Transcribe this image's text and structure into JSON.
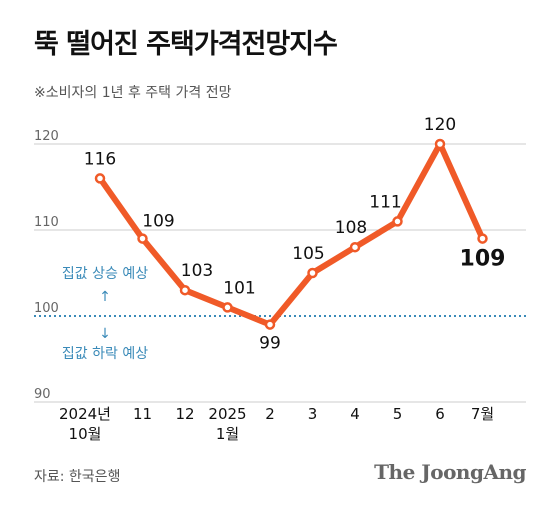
{
  "title": "뚝 떨어진 주택가격전망지수",
  "subtitle": "※소비자의 1년 후 주택 가격 전망",
  "source": "자료: 한국은행",
  "brand": "The JoongAng",
  "colors": {
    "line": "#f05a28",
    "baseline": "#3a8ab8",
    "grid": "#cccccc"
  },
  "chart_data": {
    "type": "line",
    "title": "뚝 떨어진 주택가격전망지수",
    "subtitle": "※소비자의 1년 후 주택 가격 전망",
    "categories": [
      [
        "2024년 10월"
      ],
      [
        "11"
      ],
      [
        "12"
      ],
      [
        "2025",
        "1월"
      ],
      [
        "2"
      ],
      [
        "3"
      ],
      [
        "4"
      ],
      [
        "5"
      ],
      [
        "6"
      ],
      [
        "7월"
      ]
    ],
    "category_lines": [
      [
        "2024년",
        "10월"
      ],
      [
        "11"
      ],
      [
        "12"
      ],
      [
        "2025",
        "1월"
      ],
      [
        "2"
      ],
      [
        "3"
      ],
      [
        "4"
      ],
      [
        "5"
      ],
      [
        "6"
      ],
      [
        "7월"
      ]
    ],
    "values": [
      116,
      109,
      103,
      101,
      99,
      105,
      108,
      111,
      120,
      109
    ],
    "ylim": [
      90,
      120
    ],
    "yticks": [
      90,
      100,
      110,
      120
    ],
    "grid": true,
    "reference_line": {
      "value": 100,
      "style": "dotted"
    },
    "annotations": {
      "above": "집값 상승 예상",
      "below": "집값 하락 예상"
    },
    "up_arrow": "↑",
    "down_arrow": "↓"
  }
}
